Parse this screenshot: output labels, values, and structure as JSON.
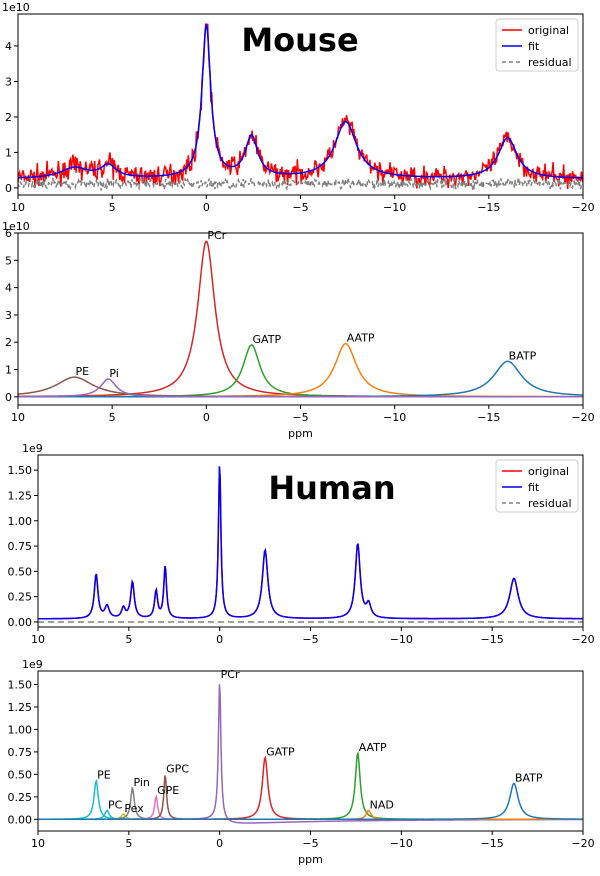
{
  "titles": {
    "top": "Mouse",
    "bottom": "Human"
  },
  "chart_data": [
    {
      "type": "line",
      "title": "Mouse",
      "xlabel": "",
      "ylabel": "",
      "xlim": [
        10,
        -20
      ],
      "ylim": [
        -0.2,
        4.9
      ],
      "y_multiplier": "1e10",
      "x_ticks": [
        10,
        5,
        0,
        -5,
        -10,
        -15,
        -20
      ],
      "y_ticks": [
        0,
        1,
        2,
        3,
        4
      ],
      "legend": {
        "position": "top-right",
        "entries": [
          {
            "name": "original",
            "color": "#ff0000",
            "style": "solid"
          },
          {
            "name": "fit",
            "color": "#0000ff",
            "style": "solid"
          },
          {
            "name": "residual",
            "color": "#808080",
            "style": "dashed"
          }
        ]
      },
      "baseline": 0.25,
      "peaks": [
        {
          "center": 7.0,
          "amp": 0.3,
          "width": 0.9
        },
        {
          "center": 5.2,
          "amp": 0.35,
          "width": 0.5
        },
        {
          "center": 0.0,
          "amp": 4.3,
          "width": 0.28
        },
        {
          "center": -2.4,
          "amp": 1.15,
          "width": 0.4
        },
        {
          "center": -7.4,
          "amp": 1.6,
          "width": 0.7
        },
        {
          "center": -16.0,
          "amp": 1.15,
          "width": 0.6
        }
      ],
      "series": [
        {
          "name": "original",
          "color": "#ff0000",
          "kind": "noisy",
          "noise": 0.28
        },
        {
          "name": "fit",
          "color": "#0000ff",
          "kind": "fit"
        },
        {
          "name": "residual",
          "color": "#808080",
          "kind": "residual",
          "level": 0.12,
          "noise": 0.14
        }
      ]
    },
    {
      "type": "line",
      "title": "",
      "xlabel": "ppm",
      "ylabel": "",
      "xlim": [
        10,
        -20
      ],
      "ylim": [
        -0.3,
        6.0
      ],
      "y_multiplier": "1e10",
      "x_ticks": [
        10,
        5,
        0,
        -5,
        -10,
        -15,
        -20
      ],
      "y_ticks": [
        0,
        1,
        2,
        3,
        4,
        5,
        6
      ],
      "series": [
        {
          "name": "PCr",
          "color": "#d62728",
          "center": 0.0,
          "amp": 5.7,
          "width": 0.55,
          "label": "PCr"
        },
        {
          "name": "GATP",
          "color": "#2ca02c",
          "center": -2.4,
          "amp": 1.9,
          "width": 0.55,
          "label": "GATP"
        },
        {
          "name": "AATP",
          "color": "#ff7f0e",
          "center": -7.4,
          "amp": 1.95,
          "width": 0.7,
          "label": "AATP"
        },
        {
          "name": "BATP",
          "color": "#1f77b4",
          "center": -16.0,
          "amp": 1.3,
          "width": 0.9,
          "label": "BATP"
        },
        {
          "name": "PE",
          "color": "#8c564b",
          "center": 7.0,
          "amp": 0.72,
          "width": 1.2,
          "label": "PE"
        },
        {
          "name": "Pi",
          "color": "#9467bd",
          "center": 5.2,
          "amp": 0.65,
          "width": 0.5,
          "label": "Pi"
        }
      ]
    },
    {
      "type": "line",
      "title": "Human",
      "xlabel": "",
      "ylabel": "",
      "xlim": [
        10,
        -20
      ],
      "ylim": [
        -0.05,
        1.65
      ],
      "y_multiplier": "1e9",
      "x_ticks": [
        10,
        5,
        0,
        -5,
        -10,
        -15,
        -20
      ],
      "y_ticks": [
        0.0,
        0.25,
        0.5,
        0.75,
        1.0,
        1.25,
        1.5
      ],
      "legend": {
        "position": "top-right",
        "entries": [
          {
            "name": "original",
            "color": "#ff0000",
            "style": "solid"
          },
          {
            "name": "fit",
            "color": "#0000ff",
            "style": "solid"
          },
          {
            "name": "residual",
            "color": "#808080",
            "style": "dashed"
          }
        ]
      },
      "baseline": 0.03,
      "peaks": [
        {
          "center": 6.8,
          "amp": 0.44,
          "width": 0.12
        },
        {
          "center": 6.2,
          "amp": 0.12,
          "width": 0.14
        },
        {
          "center": 5.3,
          "amp": 0.1,
          "width": 0.12
        },
        {
          "center": 4.8,
          "amp": 0.36,
          "width": 0.12
        },
        {
          "center": 3.5,
          "amp": 0.27,
          "width": 0.1
        },
        {
          "center": 3.0,
          "amp": 0.52,
          "width": 0.09
        },
        {
          "center": 0.0,
          "amp": 1.55,
          "width": 0.08
        },
        {
          "center": -2.5,
          "amp": 0.68,
          "width": 0.18
        },
        {
          "center": -7.6,
          "amp": 0.74,
          "width": 0.16
        },
        {
          "center": -8.2,
          "amp": 0.13,
          "width": 0.15
        },
        {
          "center": -16.2,
          "amp": 0.4,
          "width": 0.28
        }
      ],
      "series": [
        {
          "name": "original",
          "color": "#ff0000",
          "kind": "fit"
        },
        {
          "name": "fit",
          "color": "#0000ff",
          "kind": "fit"
        },
        {
          "name": "residual",
          "color": "#808080",
          "kind": "flat",
          "level": 0.0
        }
      ]
    },
    {
      "type": "line",
      "title": "",
      "xlabel": "ppm",
      "ylabel": "",
      "xlim": [
        10,
        -20
      ],
      "ylim": [
        -0.13,
        1.65
      ],
      "y_multiplier": "1e9",
      "x_ticks": [
        10,
        5,
        0,
        -5,
        -10,
        -15,
        -20
      ],
      "y_ticks": [
        0.0,
        0.25,
        0.5,
        0.75,
        1.0,
        1.25,
        1.5
      ],
      "series": [
        {
          "name": "PE",
          "color": "#17becf",
          "center": 6.8,
          "amp": 0.43,
          "width": 0.14,
          "label": "PE"
        },
        {
          "name": "PC",
          "color": "#17becf",
          "center": 6.2,
          "amp": 0.1,
          "width": 0.14,
          "label": "PC"
        },
        {
          "name": "Pex",
          "color": "#bcbd22",
          "center": 5.3,
          "amp": 0.06,
          "width": 0.14,
          "label": "Pex"
        },
        {
          "name": "Pin",
          "color": "#7f7f7f",
          "center": 4.8,
          "amp": 0.35,
          "width": 0.12,
          "label": "Pin"
        },
        {
          "name": "GPE",
          "color": "#e377c2",
          "center": 3.5,
          "amp": 0.26,
          "width": 0.1,
          "label": "GPE"
        },
        {
          "name": "GPC",
          "color": "#8c564b",
          "center": 3.0,
          "amp": 0.5,
          "width": 0.09,
          "label": "GPC"
        },
        {
          "name": "PCr",
          "color": "#9467bd",
          "center": 0.0,
          "amp": 1.55,
          "width": 0.08,
          "label": "PCr",
          "dip": -0.06
        },
        {
          "name": "GATP",
          "color": "#d62728",
          "center": -2.5,
          "amp": 0.69,
          "width": 0.18,
          "label": "GATP"
        },
        {
          "name": "AATP",
          "color": "#2ca02c",
          "center": -7.6,
          "amp": 0.74,
          "width": 0.16,
          "label": "AATP"
        },
        {
          "name": "NAD",
          "color": "#ff7f0e",
          "center": -8.2,
          "amp": 0.1,
          "width": 0.15,
          "label": "NAD"
        },
        {
          "name": "BATP",
          "color": "#1f77b4",
          "center": -16.2,
          "amp": 0.4,
          "width": 0.28,
          "label": "BATP"
        }
      ]
    }
  ]
}
